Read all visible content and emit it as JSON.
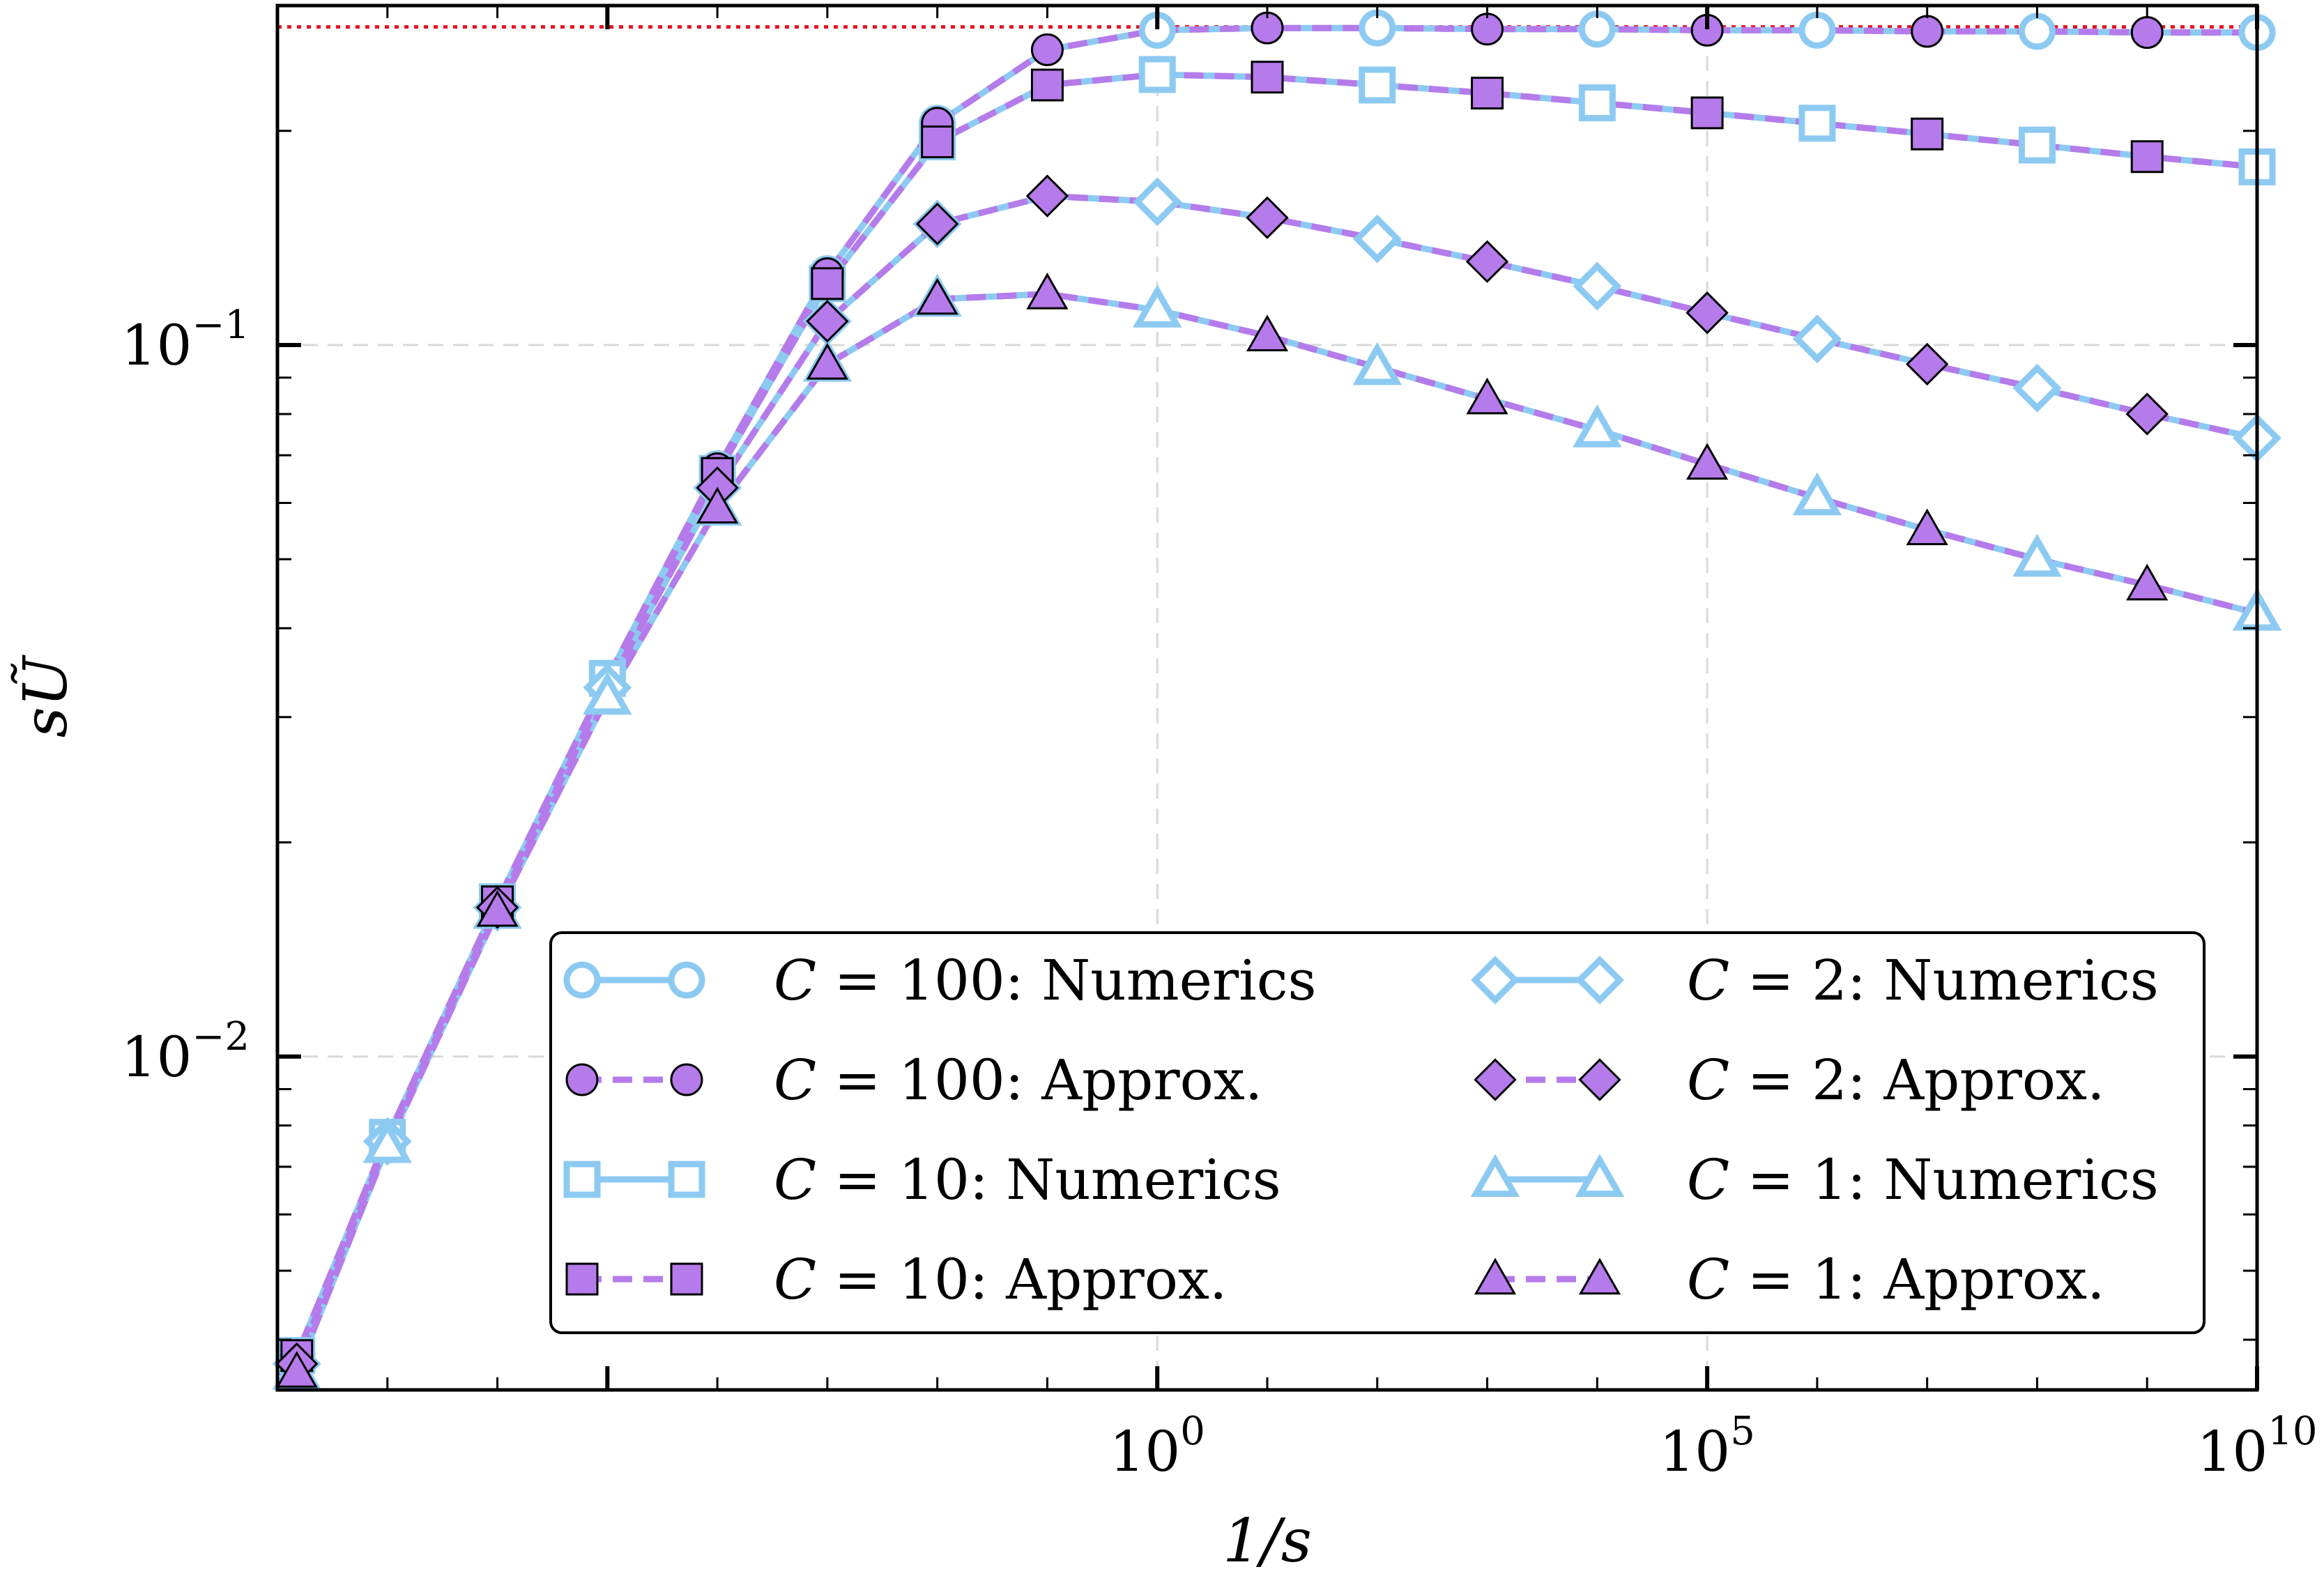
{
  "chart_data": {
    "type": "line",
    "title": "",
    "xlabel": "1/s",
    "ylabel": "sŨ",
    "xscale": "log",
    "yscale": "log",
    "xlim": [
      1e-08,
      10000000000.0
    ],
    "ylim": [
      0.0034,
      0.3
    ],
    "grid": true,
    "legend_position": "bottom-right",
    "x_tick_labels": [
      {
        "base": "10",
        "exp": "0",
        "value": 1
      },
      {
        "base": "10",
        "exp": "5",
        "value": 100000
      },
      {
        "base": "10",
        "exp": "10",
        "value": 10000000000
      }
    ],
    "y_tick_labels": [
      {
        "base": "10",
        "exp": "−1",
        "value": 0.1
      },
      {
        "base": "10",
        "exp": "−2",
        "value": 0.01
      }
    ],
    "reference_line": {
      "y": 0.28,
      "color": "#e8121e",
      "style": "dotted"
    },
    "colors": {
      "numerics": "#8dcaf2",
      "approx_line": "#b57bea",
      "approx_fill": "#b57bea"
    },
    "series": [
      {
        "name": "C = 100: Numerics",
        "c_label": "C = 100",
        "kind_label": "Numerics",
        "style": "solid",
        "marker": "circle",
        "filled": false,
        "x": [
          1.5e-08,
          1e-07,
          1e-06,
          1e-05,
          0.0001,
          0.001,
          0.01,
          0.1,
          1,
          10,
          100,
          1000,
          10000.0,
          100000.0,
          1000000.0,
          10000000.0,
          100000000.0,
          1000000000.0,
          10000000000.0
        ],
        "y": [
          0.0038,
          0.0077,
          0.0165,
          0.034,
          0.067,
          0.126,
          0.205,
          0.26,
          0.277,
          0.279,
          0.279,
          0.278,
          0.278,
          0.277,
          0.277,
          0.276,
          0.276,
          0.275,
          0.275
        ]
      },
      {
        "name": "C = 100: Approx.",
        "c_label": "C = 100",
        "kind_label": "Approx.",
        "style": "dashed",
        "marker": "circle",
        "filled": true,
        "x": [
          1.5e-08,
          1e-07,
          1e-06,
          1e-05,
          0.0001,
          0.001,
          0.01,
          0.1,
          1,
          10,
          100,
          1000,
          10000.0,
          100000.0,
          1000000.0,
          10000000.0,
          100000000.0,
          1000000000.0,
          10000000000.0
        ],
        "y": [
          0.0038,
          0.0077,
          0.0165,
          0.034,
          0.067,
          0.126,
          0.205,
          0.26,
          0.277,
          0.279,
          0.279,
          0.278,
          0.278,
          0.277,
          0.277,
          0.276,
          0.276,
          0.275,
          0.275
        ]
      },
      {
        "name": "C = 10: Numerics",
        "c_label": "C = 10",
        "kind_label": "Numerics",
        "style": "solid",
        "marker": "square",
        "filled": false,
        "x": [
          1.5e-08,
          1e-07,
          1e-06,
          1e-05,
          0.0001,
          0.001,
          0.01,
          0.1,
          1,
          10,
          100,
          1000,
          10000.0,
          100000.0,
          1000000.0,
          10000000.0,
          100000000.0,
          1000000000.0,
          10000000000.0
        ],
        "y": [
          0.0038,
          0.0077,
          0.0165,
          0.034,
          0.066,
          0.122,
          0.193,
          0.232,
          0.24,
          0.238,
          0.232,
          0.226,
          0.219,
          0.212,
          0.205,
          0.198,
          0.191,
          0.184,
          0.178
        ]
      },
      {
        "name": "C = 10: Approx.",
        "c_label": "C = 10",
        "kind_label": "Approx.",
        "style": "dashed",
        "marker": "square",
        "filled": true,
        "x": [
          1.5e-08,
          1e-07,
          1e-06,
          1e-05,
          0.0001,
          0.001,
          0.01,
          0.1,
          1,
          10,
          100,
          1000,
          10000.0,
          100000.0,
          1000000.0,
          10000000.0,
          100000000.0,
          1000000000.0,
          10000000000.0
        ],
        "y": [
          0.0038,
          0.0077,
          0.0165,
          0.034,
          0.066,
          0.122,
          0.193,
          0.232,
          0.24,
          0.238,
          0.232,
          0.226,
          0.219,
          0.212,
          0.205,
          0.198,
          0.191,
          0.184,
          0.178
        ]
      },
      {
        "name": "C = 2: Numerics",
        "c_label": "C = 2",
        "kind_label": "Numerics",
        "style": "solid",
        "marker": "diamond",
        "filled": false,
        "x": [
          1.5e-08,
          1e-07,
          1e-06,
          1e-05,
          0.0001,
          0.001,
          0.01,
          0.1,
          1,
          10,
          100,
          1000,
          10000.0,
          100000.0,
          1000000.0,
          10000000.0,
          100000000.0,
          1000000000.0,
          10000000000.0
        ],
        "y": [
          0.0037,
          0.0076,
          0.0162,
          0.033,
          0.063,
          0.108,
          0.148,
          0.162,
          0.159,
          0.151,
          0.141,
          0.131,
          0.121,
          0.111,
          0.102,
          0.094,
          0.087,
          0.08,
          0.074
        ]
      },
      {
        "name": "C = 2: Approx.",
        "c_label": "C = 2",
        "kind_label": "Approx.",
        "style": "dashed",
        "marker": "diamond",
        "filled": true,
        "x": [
          1.5e-08,
          1e-07,
          1e-06,
          1e-05,
          0.0001,
          0.001,
          0.01,
          0.1,
          1,
          10,
          100,
          1000,
          10000.0,
          100000.0,
          1000000.0,
          10000000.0,
          100000000.0,
          1000000000.0,
          10000000000.0
        ],
        "y": [
          0.0037,
          0.0076,
          0.0162,
          0.033,
          0.063,
          0.108,
          0.148,
          0.162,
          0.159,
          0.151,
          0.141,
          0.131,
          0.121,
          0.111,
          0.102,
          0.094,
          0.087,
          0.08,
          0.074
        ]
      },
      {
        "name": "C = 1: Numerics",
        "c_label": "C = 1",
        "kind_label": "Numerics",
        "style": "solid",
        "marker": "triangle",
        "filled": false,
        "x": [
          1.5e-08,
          1e-07,
          1e-06,
          1e-05,
          0.0001,
          0.001,
          0.01,
          0.1,
          1,
          10,
          100,
          1000,
          10000.0,
          100000.0,
          1000000.0,
          10000000.0,
          100000000.0,
          1000000000.0,
          10000000000.0
        ],
        "y": [
          0.0036,
          0.0075,
          0.016,
          0.032,
          0.059,
          0.094,
          0.116,
          0.118,
          0.112,
          0.103,
          0.093,
          0.084,
          0.076,
          0.068,
          0.061,
          0.055,
          0.05,
          0.046,
          0.042
        ]
      },
      {
        "name": "C = 1: Approx.",
        "c_label": "C = 1",
        "kind_label": "Approx.",
        "style": "dashed",
        "marker": "triangle",
        "filled": true,
        "x": [
          1.5e-08,
          1e-07,
          1e-06,
          1e-05,
          0.0001,
          0.001,
          0.01,
          0.1,
          1,
          10,
          100,
          1000,
          10000.0,
          100000.0,
          1000000.0,
          10000000.0,
          100000000.0,
          1000000000.0,
          10000000000.0
        ],
        "y": [
          0.0036,
          0.0075,
          0.016,
          0.032,
          0.059,
          0.094,
          0.116,
          0.118,
          0.112,
          0.103,
          0.093,
          0.084,
          0.076,
          0.068,
          0.061,
          0.055,
          0.05,
          0.046,
          0.042
        ]
      }
    ],
    "marker_x_numerics": [
      1.5e-08,
      1e-07,
      1e-06,
      1e-05,
      0.0001,
      0.001,
      0.01,
      1,
      100,
      10000.0,
      1000000.0,
      100000000.0,
      10000000000.0
    ],
    "marker_x_approx": [
      1.5e-08,
      1e-06,
      0.0001,
      0.001,
      0.01,
      0.1,
      10,
      1000,
      100000.0,
      10000000.0,
      1000000000.0
    ],
    "legend_order": [
      0,
      4,
      1,
      5,
      2,
      6,
      3,
      7
    ]
  }
}
